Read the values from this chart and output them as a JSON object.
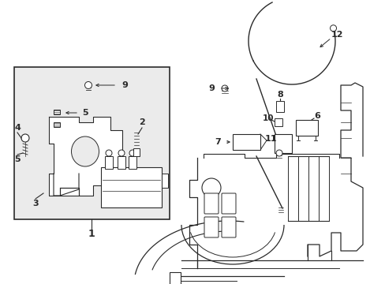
{
  "bg_color": "#ffffff",
  "line_color": "#2a2a2a",
  "box_bg": "#ebebeb",
  "fig_width": 4.89,
  "fig_height": 3.6,
  "dpi": 100
}
